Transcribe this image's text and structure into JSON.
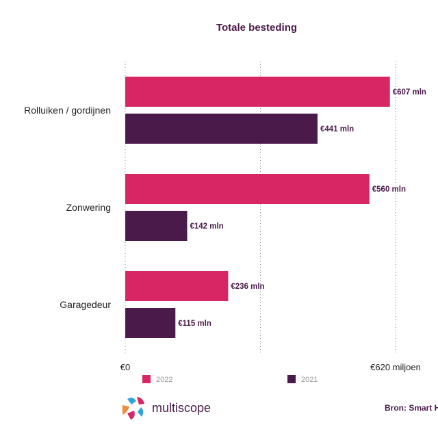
{
  "chart_data": {
    "type": "bar",
    "orientation": "horizontal",
    "title": "Totale besteding",
    "categories": [
      "Rolluiken / gordijnen",
      "Zonwering",
      "Garagedeur"
    ],
    "series": [
      {
        "name": "2022",
        "color": "#d82563",
        "values": [
          607,
          560,
          236
        ],
        "labels": [
          "€607 mln",
          "€560 mln",
          "€236 mln"
        ]
      },
      {
        "name": "2021",
        "color": "#4a1a4a",
        "values": [
          441,
          142,
          115
        ],
        "labels": [
          "€441 mln",
          "€142 mln",
          "€115 mln"
        ]
      }
    ],
    "xlim": [
      0,
      620
    ],
    "tick_labels": [
      "€0",
      "€620 miljoen"
    ],
    "grid": "dotted vertical",
    "legend_position": "bottom"
  },
  "footer": {
    "logo_text": "multiscope",
    "source": "Bron: Smart H"
  }
}
